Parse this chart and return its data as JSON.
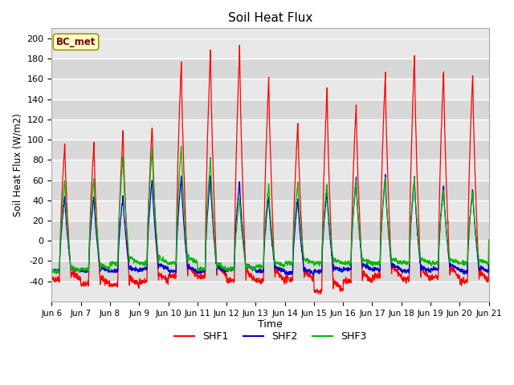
{
  "title": "Soil Heat Flux",
  "ylabel": "Soil Heat Flux (W/m2)",
  "xlabel": "Time",
  "annotation": "BC_met",
  "ylim": [
    -60,
    210
  ],
  "yticks": [
    -40,
    -20,
    0,
    20,
    40,
    60,
    80,
    100,
    120,
    140,
    160,
    180,
    200
  ],
  "fig_bg": "#ffffff",
  "plot_bg": "#e8e8e8",
  "line_colors": {
    "SHF1": "#ff0000",
    "SHF2": "#0000cc",
    "SHF3": "#00bb00"
  },
  "xtick_labels": [
    "Jun 6",
    "Jun 7",
    "Jun 8",
    "Jun 9",
    "Jun 10",
    "Jun 11",
    "Jun 12",
    "Jun 13",
    "Jun 14",
    "Jun 15",
    "Jun 16",
    "Jun 17",
    "Jun 18",
    "Jun 19",
    "Jun 20",
    "Jun 21"
  ],
  "n_days": 15,
  "shf1_peaks": [
    97,
    97,
    110,
    115,
    180,
    190,
    193,
    163,
    118,
    152,
    135,
    165,
    185,
    170,
    168
  ],
  "shf1_mins": [
    -38,
    -43,
    -44,
    -40,
    -35,
    -35,
    -40,
    -40,
    -38,
    -50,
    -40,
    -35,
    -38,
    -36,
    -40
  ],
  "shf2_peaks": [
    45,
    45,
    45,
    62,
    65,
    65,
    60,
    45,
    42,
    50,
    62,
    65,
    62,
    55,
    52
  ],
  "shf2_mins": [
    -30,
    -30,
    -30,
    -28,
    -30,
    -30,
    -28,
    -30,
    -32,
    -30,
    -28,
    -28,
    -30,
    -28,
    -30
  ],
  "shf3_peaks": [
    62,
    63,
    85,
    92,
    95,
    83,
    42,
    57,
    58,
    57,
    60,
    62,
    63,
    50,
    50
  ],
  "shf3_mins": [
    -30,
    -28,
    -22,
    -22,
    -22,
    -28,
    -28,
    -25,
    -22,
    -22,
    -22,
    -22,
    -22,
    -22,
    -22
  ]
}
